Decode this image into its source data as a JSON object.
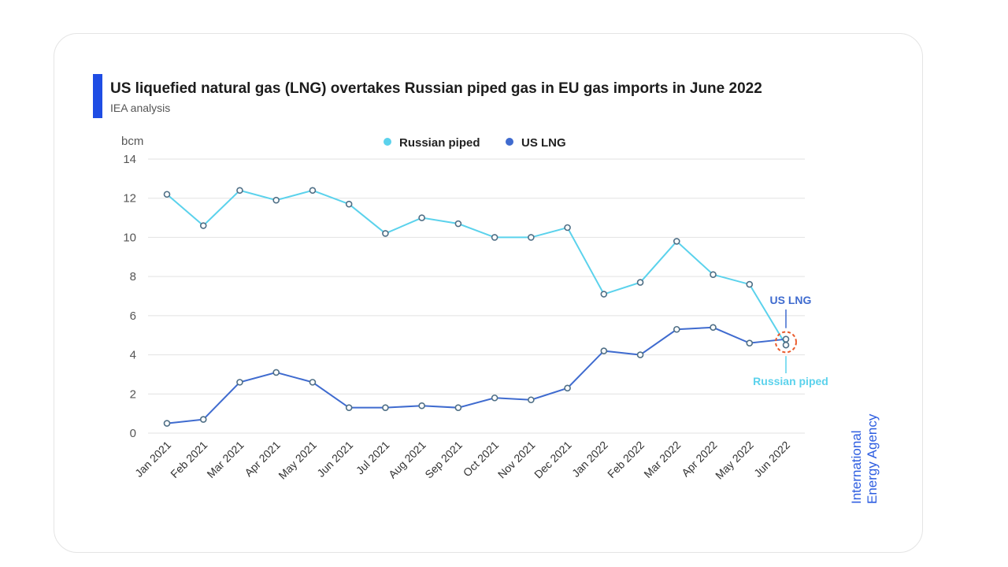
{
  "header": {
    "title": "US liquefied natural gas (LNG) overtakes Russian piped gas in EU gas imports in June 2022",
    "subtitle": "IEA analysis"
  },
  "watermark": {
    "line1": "International",
    "line2": "Energy Agency"
  },
  "colors": {
    "russian": "#5bd2ec",
    "us": "#3f6bcf",
    "grid": "#e2e2e2",
    "accent": "#1f4de4",
    "highlight": "#ea5b2c"
  },
  "chart_data": {
    "type": "line",
    "title": "US liquefied natural gas (LNG) overtakes Russian piped gas in EU gas imports in June 2022",
    "ylabel": "bcm",
    "ylim": [
      0,
      14
    ],
    "yticks": [
      0,
      2,
      4,
      6,
      8,
      10,
      12,
      14
    ],
    "grid": true,
    "legend_position": "top-center",
    "categories": [
      "Jan 2021",
      "Feb 2021",
      "Mar 2021",
      "Apr 2021",
      "May 2021",
      "Jun 2021",
      "Jul 2021",
      "Aug 2021",
      "Sep 2021",
      "Oct 2021",
      "Nov 2021",
      "Dec 2021",
      "Jan 2022",
      "Feb 2022",
      "Mar 2022",
      "Apr 2022",
      "May 2022",
      "Jun 2022"
    ],
    "series": [
      {
        "name": "Russian piped",
        "values": [
          12.2,
          10.6,
          12.4,
          11.9,
          12.4,
          11.7,
          10.2,
          11.0,
          10.7,
          10.0,
          10.0,
          10.5,
          7.1,
          7.7,
          9.8,
          8.1,
          7.6,
          4.5
        ]
      },
      {
        "name": "US LNG",
        "values": [
          0.5,
          0.7,
          2.6,
          3.1,
          2.6,
          1.3,
          1.3,
          1.4,
          1.3,
          1.8,
          1.7,
          2.3,
          4.2,
          4.0,
          5.3,
          5.4,
          4.6,
          4.8
        ]
      }
    ],
    "annotations": [
      {
        "text": "US LNG",
        "series": "US LNG",
        "category": "Jun 2022"
      },
      {
        "text": "Russian piped",
        "series": "Russian piped",
        "category": "Jun 2022"
      }
    ]
  }
}
